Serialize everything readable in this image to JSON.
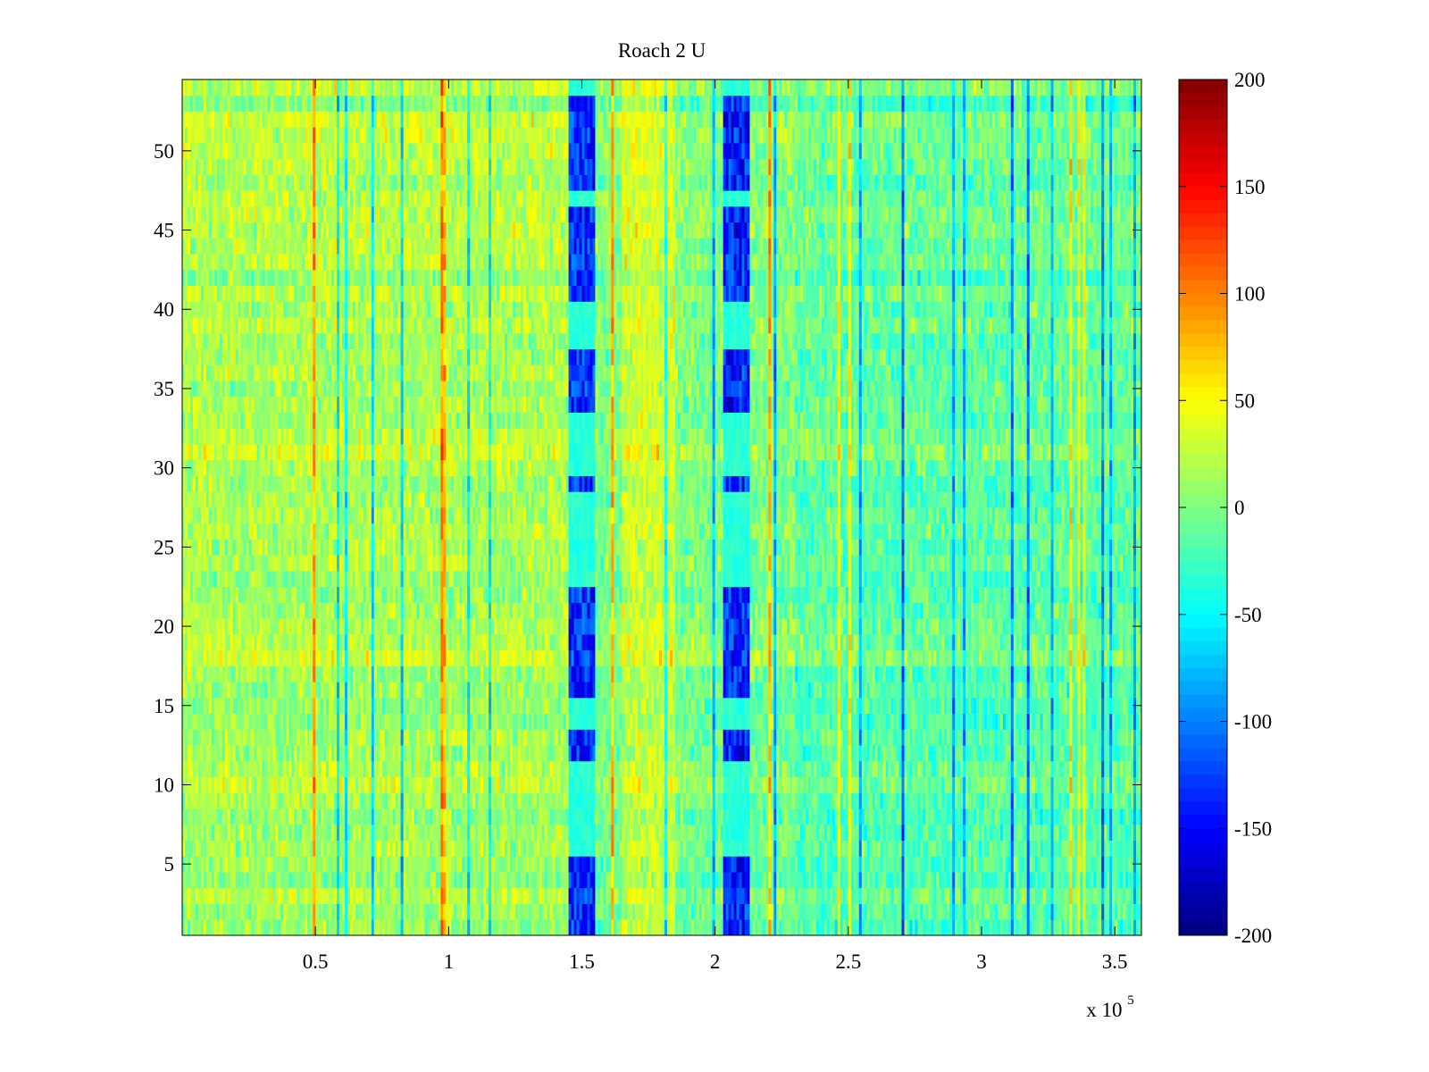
{
  "chart_data": {
    "type": "heatmap",
    "title": "Roach 2 U",
    "xlabel": "",
    "ylabel": "",
    "x_exponent_label": {
      "base": "x 10",
      "exponent": "5"
    },
    "xlim": [
      0,
      360000
    ],
    "ylim": [
      0.5,
      54.5
    ],
    "x_ticks": [
      {
        "value": 50000,
        "label": "0.5"
      },
      {
        "value": 100000,
        "label": "1"
      },
      {
        "value": 150000,
        "label": "1.5"
      },
      {
        "value": 200000,
        "label": "2"
      },
      {
        "value": 250000,
        "label": "2.5"
      },
      {
        "value": 300000,
        "label": "3"
      },
      {
        "value": 350000,
        "label": "3.5"
      }
    ],
    "y_ticks": [
      {
        "value": 5,
        "label": "5"
      },
      {
        "value": 10,
        "label": "10"
      },
      {
        "value": 15,
        "label": "15"
      },
      {
        "value": 20,
        "label": "20"
      },
      {
        "value": 25,
        "label": "25"
      },
      {
        "value": 30,
        "label": "30"
      },
      {
        "value": 35,
        "label": "35"
      },
      {
        "value": 40,
        "label": "40"
      },
      {
        "value": 45,
        "label": "45"
      },
      {
        "value": 50,
        "label": "50"
      }
    ],
    "colormap": "jet",
    "colorbar": {
      "range": [
        -200,
        200
      ],
      "ticks": [
        {
          "value": 200,
          "label": "200"
        },
        {
          "value": 150,
          "label": "150"
        },
        {
          "value": 100,
          "label": "100"
        },
        {
          "value": 50,
          "label": "50"
        },
        {
          "value": 0,
          "label": "0"
        },
        {
          "value": -50,
          "label": "-50"
        },
        {
          "value": -100,
          "label": "-100"
        },
        {
          "value": -150,
          "label": "-150"
        },
        {
          "value": -200,
          "label": "-200"
        }
      ]
    },
    "rows": 54,
    "columns": 360,
    "background_value": 0,
    "dark_bands": [
      {
        "x_range": [
          145000,
          155000
        ],
        "rows": [
          [
            1,
            4
          ],
          [
            5,
            5
          ],
          [
            12,
            13
          ],
          [
            16,
            18
          ],
          [
            19,
            22
          ],
          [
            29,
            29
          ],
          [
            34,
            37
          ],
          [
            41,
            46
          ],
          [
            48,
            51
          ],
          [
            52,
            53
          ]
        ],
        "min_value": -170
      },
      {
        "x_range": [
          203000,
          213000
        ],
        "rows": [
          [
            1,
            4
          ],
          [
            5,
            5
          ],
          [
            12,
            13
          ],
          [
            16,
            18
          ],
          [
            19,
            22
          ],
          [
            29,
            29
          ],
          [
            34,
            37
          ],
          [
            41,
            46
          ],
          [
            48,
            51
          ],
          [
            52,
            53
          ]
        ],
        "min_value": -180
      }
    ],
    "warm_regions": [
      {
        "x_range": [
          0,
          145000
        ],
        "rows": [
          1,
          54
        ],
        "approx_value": 30
      },
      {
        "x_range": [
          165000,
          185000
        ],
        "rows": [
          1,
          54
        ],
        "approx_value": 50
      }
    ],
    "description_ranges": {
      "left_half_typical": [
        0,
        60
      ],
      "right_half_typical": [
        -60,
        30
      ]
    }
  }
}
